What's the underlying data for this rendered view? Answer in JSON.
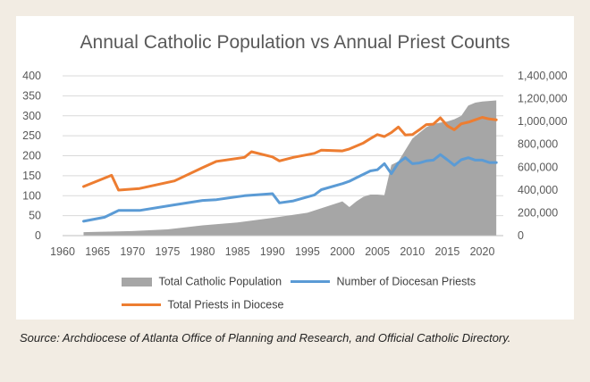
{
  "title": "Annual Catholic Population vs Annual Priest Counts",
  "source_note": "Source: Archdiocese of Atlanta Office of Planning and Research, and Official Catholic Directory.",
  "colors": {
    "population": "#a6a6a6",
    "diocesan": "#5b9bd5",
    "total_priests": "#ed7d31",
    "axis_text": "#595959",
    "gridline": "#d9d9d9"
  },
  "chart_data": {
    "type": "line",
    "title": "Annual Catholic Population vs Annual Priest Counts",
    "xlabel": "",
    "ylabel": "",
    "xlim": [
      1960,
      2023
    ],
    "ylim_left": [
      0,
      400
    ],
    "ylim_right": [
      0,
      1400000
    ],
    "grid": true,
    "legend_position": "bottom",
    "x_ticks": [
      "1960",
      "1965",
      "1970",
      "1975",
      "1980",
      "1985",
      "1990",
      "1995",
      "2000",
      "2005",
      "2010",
      "2015",
      "2020"
    ],
    "y_left_ticks": [
      "0",
      "50",
      "100",
      "150",
      "200",
      "250",
      "300",
      "350",
      "400"
    ],
    "y_right_ticks": [
      "0",
      "200,000",
      "400,000",
      "600,000",
      "800,000",
      "1,000,000",
      "1,200,000",
      "1,400,000"
    ],
    "series": [
      {
        "name": "Total Catholic Population",
        "type": "area",
        "axis": "right",
        "points": [
          [
            1963,
            30000
          ],
          [
            1965,
            33000
          ],
          [
            1970,
            40000
          ],
          [
            1975,
            55000
          ],
          [
            1980,
            90000
          ],
          [
            1985,
            115000
          ],
          [
            1990,
            155000
          ],
          [
            1995,
            200000
          ],
          [
            2000,
            300000
          ],
          [
            2001,
            250000
          ],
          [
            2002,
            300000
          ],
          [
            2003,
            340000
          ],
          [
            2004,
            360000
          ],
          [
            2005,
            360000
          ],
          [
            2006,
            355000
          ],
          [
            2007,
            620000
          ],
          [
            2008,
            650000
          ],
          [
            2009,
            750000
          ],
          [
            2010,
            850000
          ],
          [
            2011,
            900000
          ],
          [
            2012,
            950000
          ],
          [
            2013,
            980000
          ],
          [
            2014,
            990000
          ],
          [
            2015,
            1000000
          ],
          [
            2016,
            1020000
          ],
          [
            2017,
            1050000
          ],
          [
            2018,
            1140000
          ],
          [
            2019,
            1165000
          ],
          [
            2020,
            1175000
          ],
          [
            2021,
            1180000
          ],
          [
            2022,
            1185000
          ]
        ]
      },
      {
        "name": "Number of Diocesan Priests",
        "type": "line",
        "axis": "left",
        "points": [
          [
            1963,
            36
          ],
          [
            1966,
            46
          ],
          [
            1968,
            63
          ],
          [
            1971,
            63
          ],
          [
            1976,
            77
          ],
          [
            1980,
            88
          ],
          [
            1982,
            90
          ],
          [
            1986,
            100
          ],
          [
            1990,
            105
          ],
          [
            1991,
            82
          ],
          [
            1993,
            87
          ],
          [
            1996,
            102
          ],
          [
            1997,
            115
          ],
          [
            2000,
            130
          ],
          [
            2001,
            136
          ],
          [
            2002,
            145
          ],
          [
            2004,
            162
          ],
          [
            2005,
            165
          ],
          [
            2006,
            180
          ],
          [
            2007,
            155
          ],
          [
            2008,
            182
          ],
          [
            2009,
            195
          ],
          [
            2010,
            180
          ],
          [
            2011,
            182
          ],
          [
            2012,
            187
          ],
          [
            2013,
            189
          ],
          [
            2014,
            203
          ],
          [
            2015,
            190
          ],
          [
            2016,
            176
          ],
          [
            2017,
            190
          ],
          [
            2018,
            195
          ],
          [
            2019,
            189
          ],
          [
            2020,
            189
          ],
          [
            2021,
            183
          ],
          [
            2022,
            183
          ]
        ]
      },
      {
        "name": "Total Priests in Diocese",
        "type": "line",
        "axis": "left",
        "points": [
          [
            1963,
            123
          ],
          [
            1967,
            151
          ],
          [
            1968,
            114
          ],
          [
            1971,
            118
          ],
          [
            1976,
            137
          ],
          [
            1980,
            170
          ],
          [
            1982,
            186
          ],
          [
            1986,
            196
          ],
          [
            1987,
            210
          ],
          [
            1990,
            197
          ],
          [
            1991,
            187
          ],
          [
            1993,
            196
          ],
          [
            1996,
            206
          ],
          [
            1997,
            214
          ],
          [
            2000,
            212
          ],
          [
            2001,
            217
          ],
          [
            2003,
            232
          ],
          [
            2004,
            243
          ],
          [
            2005,
            253
          ],
          [
            2006,
            248
          ],
          [
            2007,
            258
          ],
          [
            2008,
            272
          ],
          [
            2009,
            252
          ],
          [
            2010,
            253
          ],
          [
            2011,
            265
          ],
          [
            2012,
            278
          ],
          [
            2013,
            279
          ],
          [
            2014,
            295
          ],
          [
            2015,
            275
          ],
          [
            2016,
            265
          ],
          [
            2017,
            280
          ],
          [
            2018,
            284
          ],
          [
            2019,
            290
          ],
          [
            2020,
            296
          ],
          [
            2021,
            292
          ],
          [
            2022,
            290
          ]
        ]
      }
    ]
  }
}
